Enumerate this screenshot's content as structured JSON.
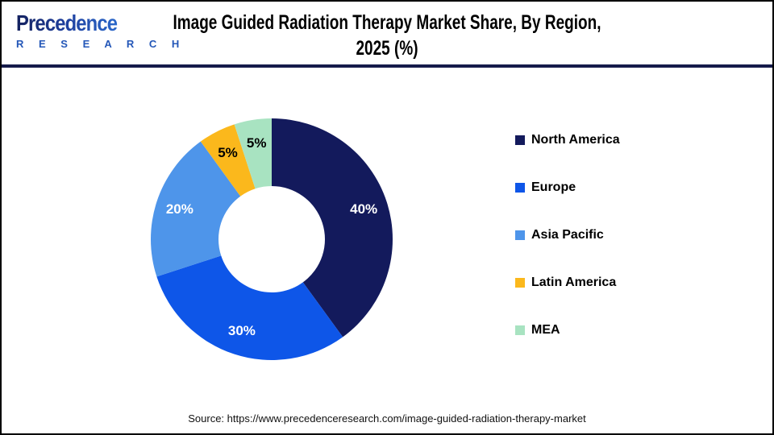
{
  "header": {
    "logo": {
      "brand": "Precedence",
      "sub": "R E S E A R C H"
    },
    "title_line1": "Image Guided Radiation Therapy Market Share, By Region,",
    "title_line2": "2025 (%)"
  },
  "chart_data": {
    "type": "pie",
    "donut": true,
    "title": "Image Guided Radiation Therapy Market Share, By Region, 2025 (%)",
    "start_angle_deg": 0,
    "direction": "clockwise",
    "legend_position": "right",
    "unit": "%",
    "segments": [
      {
        "label": "North America",
        "value": 40,
        "display": "40%",
        "color": "#131a5c",
        "label_color": "#ffffff"
      },
      {
        "label": "Europe",
        "value": 30,
        "display": "30%",
        "color": "#0e56e8",
        "label_color": "#ffffff"
      },
      {
        "label": "Asia Pacific",
        "value": 20,
        "display": "20%",
        "color": "#4e95ea",
        "label_color": "#ffffff"
      },
      {
        "label": "Latin America",
        "value": 5,
        "display": "5%",
        "color": "#fbb81c",
        "label_color": "#000000"
      },
      {
        "label": "MEA",
        "value": 5,
        "display": "5%",
        "color": "#a8e3c1",
        "label_color": "#000000"
      }
    ]
  },
  "footer": {
    "source": "Source: https://www.precedenceresearch.com/image-guided-radiation-therapy-market"
  },
  "colors": {
    "header_rule": "#151a4a",
    "canvas_border": "#000000",
    "background": "#ffffff"
  }
}
